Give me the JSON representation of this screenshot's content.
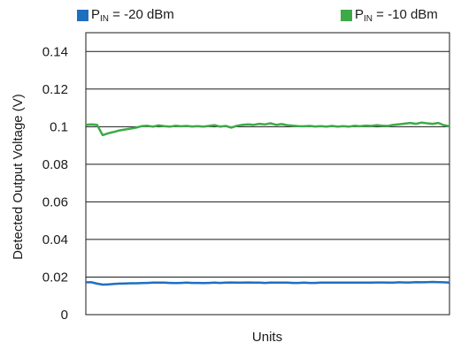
{
  "chart_data": {
    "type": "line",
    "title": "",
    "xlabel": "Units",
    "ylabel": "Detected Output Voltage (V)",
    "ylim": [
      0,
      0.15
    ],
    "y_ticks": [
      "0",
      "0.02",
      "0.04",
      "0.06",
      "0.08",
      "0.1",
      "0.12",
      "0.14"
    ],
    "grid": "horizontal",
    "legend_position": "top",
    "series": [
      {
        "name": "PIN = -20 dBm",
        "label_main": "P",
        "label_sub": "IN",
        "label_rest": " = -20 dBm",
        "color": "#1f6fbf",
        "values": [
          0.0172,
          0.0172,
          0.0165,
          0.016,
          0.0161,
          0.0163,
          0.0165,
          0.0166,
          0.0167,
          0.0167,
          0.0168,
          0.0169,
          0.017,
          0.017,
          0.017,
          0.0169,
          0.0168,
          0.0169,
          0.017,
          0.0169,
          0.0169,
          0.0168,
          0.0169,
          0.017,
          0.0169,
          0.017,
          0.0171,
          0.017,
          0.017,
          0.0171,
          0.017,
          0.017,
          0.0169,
          0.017,
          0.017,
          0.017,
          0.017,
          0.0169,
          0.0169,
          0.017,
          0.0169,
          0.0169,
          0.017,
          0.017,
          0.017,
          0.017,
          0.017,
          0.017,
          0.017,
          0.017,
          0.017,
          0.017,
          0.0171,
          0.0171,
          0.017,
          0.017,
          0.0172,
          0.0171,
          0.0171,
          0.0173,
          0.0172,
          0.0173,
          0.0174,
          0.0173,
          0.0172,
          0.017
        ]
      },
      {
        "name": "PIN = -10 dBm",
        "label_main": "P",
        "label_sub": "IN",
        "label_rest": " = -10 dBm",
        "color": "#3daa47",
        "values": [
          0.101,
          0.1012,
          0.101,
          0.0955,
          0.0965,
          0.0972,
          0.098,
          0.0985,
          0.099,
          0.0995,
          0.1003,
          0.1005,
          0.1,
          0.1007,
          0.1003,
          0.1,
          0.1005,
          0.1002,
          0.1004,
          0.1001,
          0.1003,
          0.1,
          0.1004,
          0.1008,
          0.1,
          0.1004,
          0.0995,
          0.1005,
          0.101,
          0.1012,
          0.101,
          0.1015,
          0.1012,
          0.1018,
          0.101,
          0.1014,
          0.1008,
          0.1005,
          0.1003,
          0.1002,
          0.1004,
          0.1001,
          0.1003,
          0.1,
          0.1004,
          0.1,
          0.1003,
          0.1,
          0.1005,
          0.1002,
          0.1006,
          0.1004,
          0.1008,
          0.1005,
          0.1004,
          0.101,
          0.1013,
          0.1016,
          0.102,
          0.1015,
          0.1022,
          0.1018,
          0.1015,
          0.102,
          0.1008,
          0.1002
        ]
      }
    ]
  }
}
